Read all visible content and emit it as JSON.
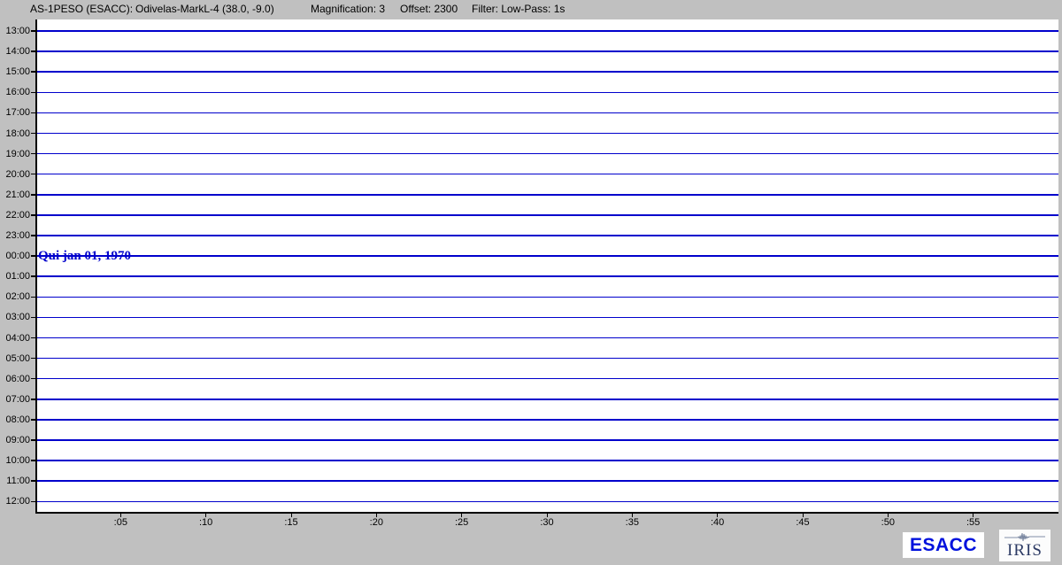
{
  "header": {
    "station": "AS-1PESO (ESACC):",
    "instrument": "Odivelas-MarkL-4 (38.0, -9.0)",
    "magnification": "Magnification: 3",
    "offset": "Offset: 2300",
    "filter": "Filter: Low-Pass: 1s"
  },
  "plot": {
    "date_label": "Qui jan 01, 1970"
  },
  "left_axis": {
    "hours": [
      "13:00",
      "14:00",
      "15:00",
      "16:00",
      "17:00",
      "18:00",
      "19:00",
      "20:00",
      "21:00",
      "22:00",
      "23:00",
      "00:00",
      "01:00",
      "02:00",
      "03:00",
      "04:00",
      "05:00",
      "06:00",
      "07:00",
      "08:00",
      "09:00",
      "10:00",
      "11:00",
      "12:00"
    ]
  },
  "x_axis": {
    "ticks": [
      ":05",
      ":10",
      ":15",
      ":20",
      ":25",
      ":30",
      ":35",
      ":40",
      ":45",
      ":50",
      ":55"
    ]
  },
  "logos": {
    "esacc": "ESACC",
    "iris": "IRIS"
  },
  "colors": {
    "background": "#C0C0C0",
    "plot_background": "#FFFFFF",
    "line": "#0000CC",
    "esacc": "#0011DD",
    "iris_text": "#2C3A64",
    "axis": "#000000"
  }
}
